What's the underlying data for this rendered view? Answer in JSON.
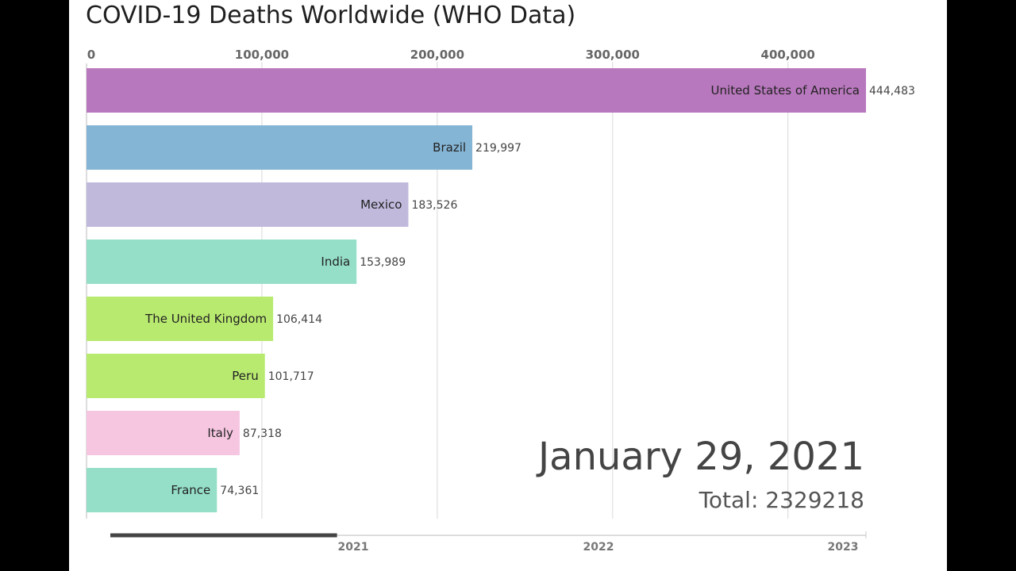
{
  "title": "COVID-19 Deaths Worldwide (WHO Data)",
  "chart_data": {
    "type": "bar",
    "orientation": "horizontal",
    "title": "COVID-19 Deaths Worldwide (WHO Data)",
    "x_axis_position": "top",
    "xlim": [
      0,
      444483
    ],
    "x_ticks": [
      0,
      100000,
      200000,
      300000,
      400000
    ],
    "x_tick_labels": [
      "0",
      "100,000",
      "200,000",
      "300,000",
      "400,000"
    ],
    "grid": true,
    "categories": [
      "United States of America",
      "Brazil",
      "Mexico",
      "India",
      "The United Kingdom",
      "Peru",
      "Italy",
      "France"
    ],
    "values": [
      444483,
      219997,
      183526,
      153989,
      106414,
      101717,
      87318,
      74361
    ],
    "value_labels": [
      "444,483",
      "219,997",
      "183,526",
      "153,989",
      "106,414",
      "101,717",
      "87,318",
      "74,361"
    ],
    "colors": [
      "#b878bd",
      "#85b5d5",
      "#c0b9dc",
      "#95dfc8",
      "#b9ea70",
      "#b9ea70",
      "#f6c6e1",
      "#95dfc8"
    ]
  },
  "date_label": "January 29, 2021",
  "total_label": "Total: 2329218",
  "timeline": {
    "labels": [
      "2021",
      "2022",
      "2023"
    ],
    "progress": 0.3
  }
}
